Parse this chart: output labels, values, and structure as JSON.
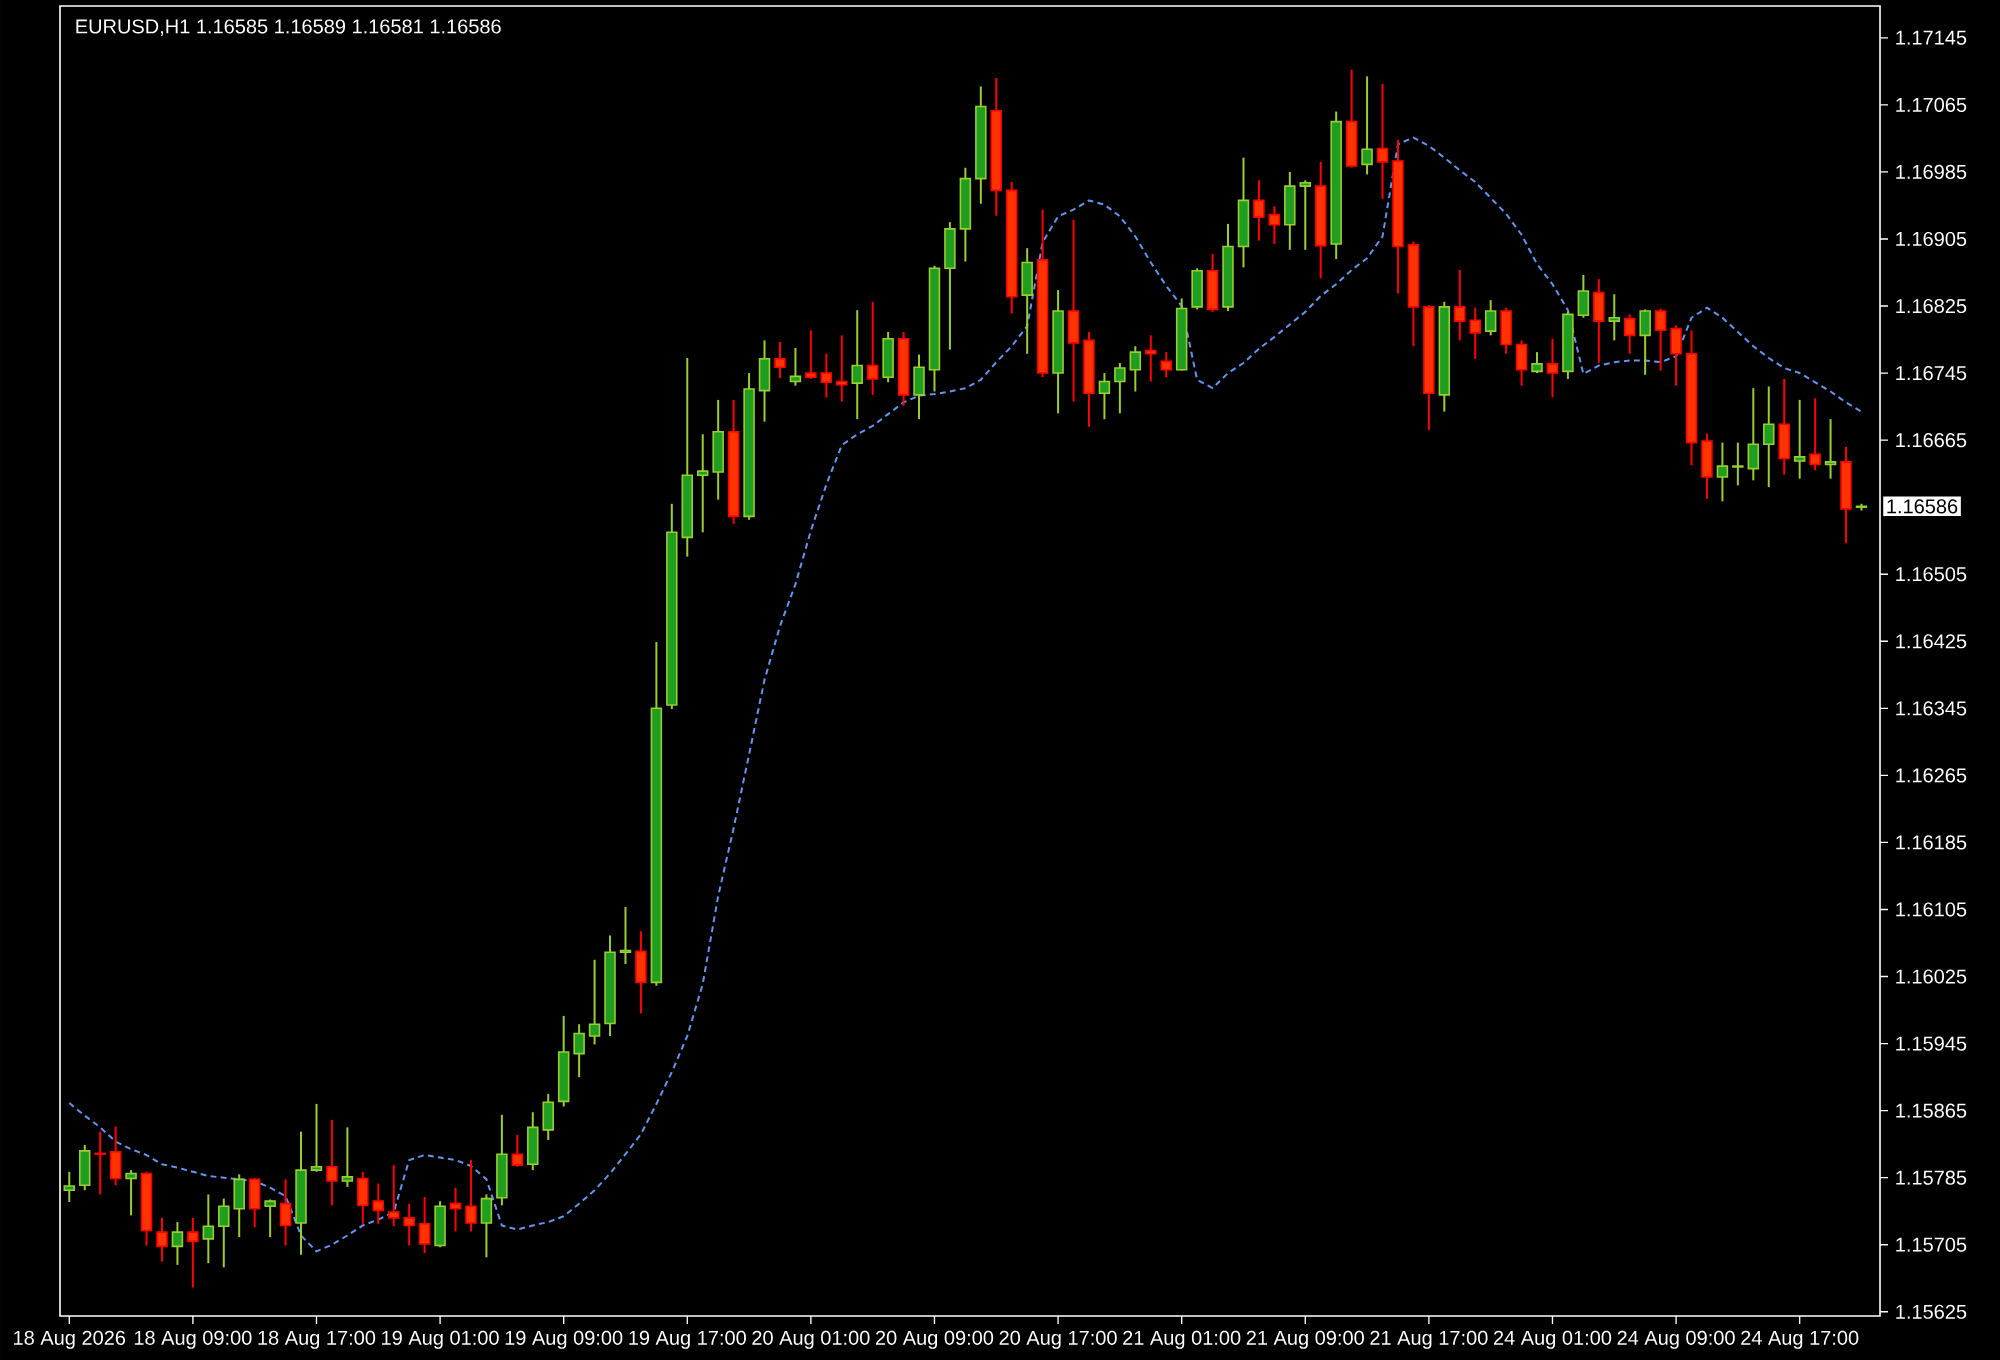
{
  "chart_data": {
    "type": "candlestick",
    "title": "EURUSD,H1  1.16585 1.16589 1.16581 1.16586",
    "categories": [
      "18 Aug 2026",
      null,
      null,
      null,
      null,
      null,
      null,
      null,
      "18 Aug 09:00",
      null,
      null,
      null,
      null,
      null,
      null,
      null,
      "18 Aug 17:00",
      null,
      null,
      null,
      null,
      null,
      null,
      null,
      "19 Aug 01:00",
      null,
      null,
      null,
      null,
      null,
      null,
      null,
      "19 Aug 09:00",
      null,
      null,
      null,
      null,
      null,
      null,
      null,
      "19 Aug 17:00",
      null,
      null,
      null,
      null,
      null,
      null,
      null,
      "20 Aug 01:00",
      null,
      null,
      null,
      null,
      null,
      null,
      null,
      "20 Aug 09:00",
      null,
      null,
      null,
      null,
      null,
      null,
      null,
      "20 Aug 17:00",
      null,
      null,
      null,
      null,
      null,
      null,
      null,
      "21 Aug 01:00",
      null,
      null,
      null,
      null,
      null,
      null,
      null,
      "21 Aug 09:00",
      null,
      null,
      null,
      null,
      null,
      null,
      null,
      "21 Aug 17:00",
      null,
      null,
      null,
      null,
      null,
      null,
      null,
      "24 Aug 01:00",
      null,
      null,
      null,
      null,
      null,
      null,
      null,
      "24 Aug 09:00",
      null,
      null,
      null,
      null,
      null,
      null,
      null,
      "24 Aug 17:00",
      null,
      null,
      null,
      null
    ],
    "ohlc": [
      [
        1.1577,
        1.15792,
        1.15756,
        1.15775
      ],
      [
        1.15776,
        1.15824,
        1.1577,
        1.15817
      ],
      [
        1.15814,
        1.1584,
        1.15765,
        1.15813
      ],
      [
        1.15816,
        1.15846,
        1.15776,
        1.15784
      ],
      [
        1.15784,
        1.15794,
        1.1574,
        1.1579
      ],
      [
        1.1579,
        1.15792,
        1.15704,
        1.15722
      ],
      [
        1.1572,
        1.15737,
        1.15685,
        1.15703
      ],
      [
        1.15703,
        1.15732,
        1.15681,
        1.1572
      ],
      [
        1.1572,
        1.15737,
        1.15654,
        1.15709
      ],
      [
        1.15712,
        1.15765,
        1.15683,
        1.15727
      ],
      [
        1.15727,
        1.1576,
        1.15678,
        1.15751
      ],
      [
        1.15748,
        1.15789,
        1.15714,
        1.15783
      ],
      [
        1.15783,
        1.15785,
        1.15726,
        1.15748
      ],
      [
        1.15751,
        1.15759,
        1.15714,
        1.15757
      ],
      [
        1.15754,
        1.15783,
        1.15704,
        1.15728
      ],
      [
        1.15731,
        1.1584,
        1.15693,
        1.15794
      ],
      [
        1.15794,
        1.15873,
        1.15792,
        1.15798
      ],
      [
        1.15798,
        1.15854,
        1.15752,
        1.15781
      ],
      [
        1.15781,
        1.15845,
        1.15774,
        1.15786
      ],
      [
        1.15784,
        1.15792,
        1.1573,
        1.15752
      ],
      [
        1.15757,
        1.15778,
        1.1573,
        1.15746
      ],
      [
        1.15744,
        1.158,
        1.15727,
        1.15737
      ],
      [
        1.15737,
        1.15754,
        1.15704,
        1.15728
      ],
      [
        1.1573,
        1.15762,
        1.15695,
        1.15706
      ],
      [
        1.15704,
        1.15757,
        1.15702,
        1.15751
      ],
      [
        1.15754,
        1.15773,
        1.15721,
        1.15748
      ],
      [
        1.15751,
        1.15806,
        1.15721,
        1.15731
      ],
      [
        1.15731,
        1.15765,
        1.1569,
        1.1576
      ],
      [
        1.15761,
        1.1586,
        1.15752,
        1.15813
      ],
      [
        1.15813,
        1.15836,
        1.15798,
        1.158
      ],
      [
        1.15801,
        1.15863,
        1.15794,
        1.15845
      ],
      [
        1.15842,
        1.15885,
        1.1583,
        1.15875
      ],
      [
        1.15876,
        1.15978,
        1.1587,
        1.15935
      ],
      [
        1.15933,
        1.15968,
        1.15905,
        1.15957
      ],
      [
        1.15954,
        1.16045,
        1.15944,
        1.15968
      ],
      [
        1.15969,
        1.16074,
        1.15954,
        1.16054
      ],
      [
        1.16054,
        1.16108,
        1.1604,
        1.16056
      ],
      [
        1.16055,
        1.16079,
        1.15981,
        1.16018
      ],
      [
        1.16018,
        1.16424,
        1.16014,
        1.16345
      ],
      [
        1.16349,
        1.16589,
        1.16344,
        1.16555
      ],
      [
        1.16549,
        1.16763,
        1.16526,
        1.16623
      ],
      [
        1.16623,
        1.16672,
        1.16555,
        1.16628
      ],
      [
        1.16627,
        1.16713,
        1.16594,
        1.16675
      ],
      [
        1.16675,
        1.16713,
        1.16565,
        1.16574
      ],
      [
        1.16574,
        1.16745,
        1.1657,
        1.16726
      ],
      [
        1.16724,
        1.16784,
        1.16687,
        1.16762
      ],
      [
        1.16762,
        1.16782,
        1.16739,
        1.16752
      ],
      [
        1.16735,
        1.16775,
        1.1673,
        1.16741
      ],
      [
        1.16745,
        1.16796,
        1.16738,
        1.1674
      ],
      [
        1.16745,
        1.16768,
        1.16716,
        1.16734
      ],
      [
        1.16735,
        1.1679,
        1.16711,
        1.16731
      ],
      [
        1.16733,
        1.1682,
        1.1669,
        1.16754
      ],
      [
        1.16754,
        1.1683,
        1.16719,
        1.16738
      ],
      [
        1.1674,
        1.16794,
        1.16734,
        1.16786
      ],
      [
        1.16786,
        1.16794,
        1.16706,
        1.16719
      ],
      [
        1.16719,
        1.16767,
        1.1669,
        1.16752
      ],
      [
        1.16749,
        1.16873,
        1.16723,
        1.1687
      ],
      [
        1.1687,
        1.16925,
        1.16773,
        1.16917
      ],
      [
        1.16917,
        1.1699,
        1.16878,
        1.16977
      ],
      [
        1.16977,
        1.17087,
        1.16947,
        1.17063
      ],
      [
        1.17058,
        1.17097,
        1.16933,
        1.16963
      ],
      [
        1.16963,
        1.16973,
        1.16816,
        1.16836
      ],
      [
        1.16838,
        1.16894,
        1.16768,
        1.16877
      ],
      [
        1.1688,
        1.1694,
        1.1674,
        1.16745
      ],
      [
        1.16745,
        1.16844,
        1.16697,
        1.16819
      ],
      [
        1.16819,
        1.16928,
        1.16711,
        1.16781
      ],
      [
        1.16784,
        1.16794,
        1.16681,
        1.16721
      ],
      [
        1.16721,
        1.16745,
        1.1669,
        1.16735
      ],
      [
        1.16735,
        1.16757,
        1.16697,
        1.16751
      ],
      [
        1.16749,
        1.16777,
        1.16723,
        1.1677
      ],
      [
        1.16772,
        1.1679,
        1.16735,
        1.16768
      ],
      [
        1.16759,
        1.1677,
        1.1674,
        1.16749
      ],
      [
        1.16749,
        1.16834,
        1.16748,
        1.16822
      ],
      [
        1.16824,
        1.1687,
        1.16821,
        1.16867
      ],
      [
        1.16867,
        1.16887,
        1.16818,
        1.16821
      ],
      [
        1.16824,
        1.16923,
        1.16819,
        1.16896
      ],
      [
        1.16896,
        1.17002,
        1.16871,
        1.16951
      ],
      [
        1.16951,
        1.16975,
        1.16903,
        1.16931
      ],
      [
        1.16934,
        1.16944,
        1.16899,
        1.16922
      ],
      [
        1.16922,
        1.16985,
        1.16892,
        1.16968
      ],
      [
        1.16968,
        1.16975,
        1.16892,
        1.16972
      ],
      [
        1.16968,
        1.16997,
        1.16858,
        1.16897
      ],
      [
        1.16899,
        1.17057,
        1.16881,
        1.17045
      ],
      [
        1.17045,
        1.17107,
        1.1699,
        1.16992
      ],
      [
        1.16994,
        1.17099,
        1.16982,
        1.17012
      ],
      [
        1.17013,
        1.1709,
        1.16953,
        1.16997
      ],
      [
        1.16998,
        1.17023,
        1.1684,
        1.16896
      ],
      [
        1.16898,
        1.16902,
        1.16777,
        1.16824
      ],
      [
        1.16824,
        1.16826,
        1.16677,
        1.16721
      ],
      [
        1.16719,
        1.1683,
        1.16699,
        1.16824
      ],
      [
        1.16824,
        1.16868,
        1.16784,
        1.16807
      ],
      [
        1.16808,
        1.16823,
        1.16762,
        1.16793
      ],
      [
        1.16795,
        1.16832,
        1.1679,
        1.16819
      ],
      [
        1.16819,
        1.16823,
        1.16768,
        1.16779
      ],
      [
        1.16779,
        1.16784,
        1.1673,
        1.16749
      ],
      [
        1.16747,
        1.1677,
        1.16745,
        1.16756
      ],
      [
        1.16756,
        1.16786,
        1.16716,
        1.16745
      ],
      [
        1.16747,
        1.16818,
        1.16738,
        1.16815
      ],
      [
        1.16814,
        1.16862,
        1.16811,
        1.16843
      ],
      [
        1.16841,
        1.16857,
        1.16757,
        1.16807
      ],
      [
        1.16807,
        1.16839,
        1.16784,
        1.16811
      ],
      [
        1.1681,
        1.16815,
        1.16768,
        1.1679
      ],
      [
        1.1679,
        1.16821,
        1.16743,
        1.16819
      ],
      [
        1.16819,
        1.16822,
        1.16748,
        1.16796
      ],
      [
        1.16798,
        1.16802,
        1.1673,
        1.16768
      ],
      [
        1.16768,
        1.16796,
        1.16635,
        1.16662
      ],
      [
        1.16664,
        1.16673,
        1.16595,
        1.16621
      ],
      [
        1.16621,
        1.16662,
        1.16592,
        1.16634
      ],
      [
        1.16633,
        1.16662,
        1.16611,
        1.16634
      ],
      [
        1.16631,
        1.16727,
        1.16617,
        1.1666
      ],
      [
        1.1666,
        1.16729,
        1.16609,
        1.16684
      ],
      [
        1.16684,
        1.16738,
        1.16624,
        1.16643
      ],
      [
        1.1664,
        1.16713,
        1.16619,
        1.16645
      ],
      [
        1.16648,
        1.16715,
        1.16629,
        1.16636
      ],
      [
        1.16636,
        1.1669,
        1.16619,
        1.16639
      ],
      [
        1.16639,
        1.16657,
        1.16542,
        1.16583
      ],
      [
        1.16585,
        1.16589,
        1.16581,
        1.16586
      ]
    ],
    "series": [
      {
        "type": "line",
        "color": "#6495ed",
        "line_style": "dashed",
        "values": [
          1.15874,
          1.15859,
          1.15845,
          1.15828,
          1.15819,
          1.15812,
          1.15801,
          1.15797,
          1.15792,
          1.15787,
          1.15785,
          1.15783,
          1.15781,
          1.15773,
          1.15763,
          1.15716,
          1.15697,
          1.15705,
          1.15716,
          1.15728,
          1.15735,
          1.15744,
          1.15806,
          1.15812,
          1.15809,
          1.15806,
          1.15799,
          1.15783,
          1.15728,
          1.15723,
          1.15728,
          1.15732,
          1.15739,
          1.15754,
          1.1577,
          1.1579,
          1.15813,
          1.15837,
          1.15873,
          1.15911,
          1.15954,
          1.16016,
          1.16121,
          1.16202,
          1.1629,
          1.16379,
          1.16443,
          1.16493,
          1.16557,
          1.16612,
          1.16659,
          1.16672,
          1.16682,
          1.16696,
          1.1671,
          1.16718,
          1.1672,
          1.16723,
          1.16727,
          1.16737,
          1.16758,
          1.16777,
          1.16801,
          1.16901,
          1.16932,
          1.1694,
          1.16951,
          1.16946,
          1.16932,
          1.16908,
          1.16877,
          1.16849,
          1.16825,
          1.16737,
          1.16727,
          1.16745,
          1.16757,
          1.16774,
          1.16788,
          1.16803,
          1.16818,
          1.16837,
          1.16851,
          1.16868,
          1.16882,
          1.16908,
          1.17018,
          1.17026,
          1.17016,
          1.17002,
          1.16987,
          1.16973,
          1.16954,
          1.16935,
          1.1691,
          1.16875,
          1.16851,
          1.1682,
          1.16744,
          1.16754,
          1.16758,
          1.1676,
          1.1676,
          1.16758,
          1.16765,
          1.16811,
          1.16823,
          1.16811,
          1.16794,
          1.16777,
          1.16763,
          1.16751,
          1.16745,
          1.16734,
          1.16723,
          1.1671,
          1.16699
        ]
      }
    ],
    "ylim": [
      1.1562,
      1.17183
    ],
    "yticks": [
      1.15625,
      1.15705,
      1.15785,
      1.15865,
      1.15945,
      1.16025,
      1.16105,
      1.16185,
      1.16265,
      1.16345,
      1.16425,
      1.16505,
      1.16665,
      1.16745,
      1.16825,
      1.16905,
      1.16985,
      1.17065,
      1.17145
    ],
    "annotations": [
      "1.16586"
    ]
  }
}
